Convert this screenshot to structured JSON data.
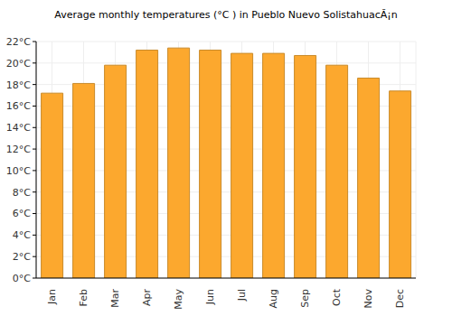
{
  "chart_data": {
    "type": "bar",
    "title": "Average monthly temperatures (°C ) in Pueblo Nuevo SolistahuacĂ¡n",
    "categories": [
      "Jan",
      "Feb",
      "Mar",
      "Apr",
      "May",
      "Jun",
      "Jul",
      "Aug",
      "Sep",
      "Oct",
      "Nov",
      "Dec"
    ],
    "values": [
      17.2,
      18.1,
      19.8,
      21.2,
      21.4,
      21.2,
      20.9,
      20.9,
      20.7,
      19.8,
      18.6,
      17.4
    ],
    "color": "#fca82e",
    "ylim": [
      0,
      22
    ],
    "yticks": [
      {
        "value": 0,
        "label": "0°C"
      },
      {
        "value": 2,
        "label": "2°C"
      },
      {
        "value": 4,
        "label": "4°C"
      },
      {
        "value": 6,
        "label": "6°C"
      },
      {
        "value": 8,
        "label": "8°C"
      },
      {
        "value": 10,
        "label": "10°C"
      },
      {
        "value": 12,
        "label": "12°C"
      },
      {
        "value": 14,
        "label": "14°C"
      },
      {
        "value": 16,
        "label": "16°C"
      },
      {
        "value": 18,
        "label": "18°C"
      },
      {
        "value": 20,
        "label": "20°C"
      },
      {
        "value": 22,
        "label": "22°C"
      }
    ],
    "grid": true
  }
}
